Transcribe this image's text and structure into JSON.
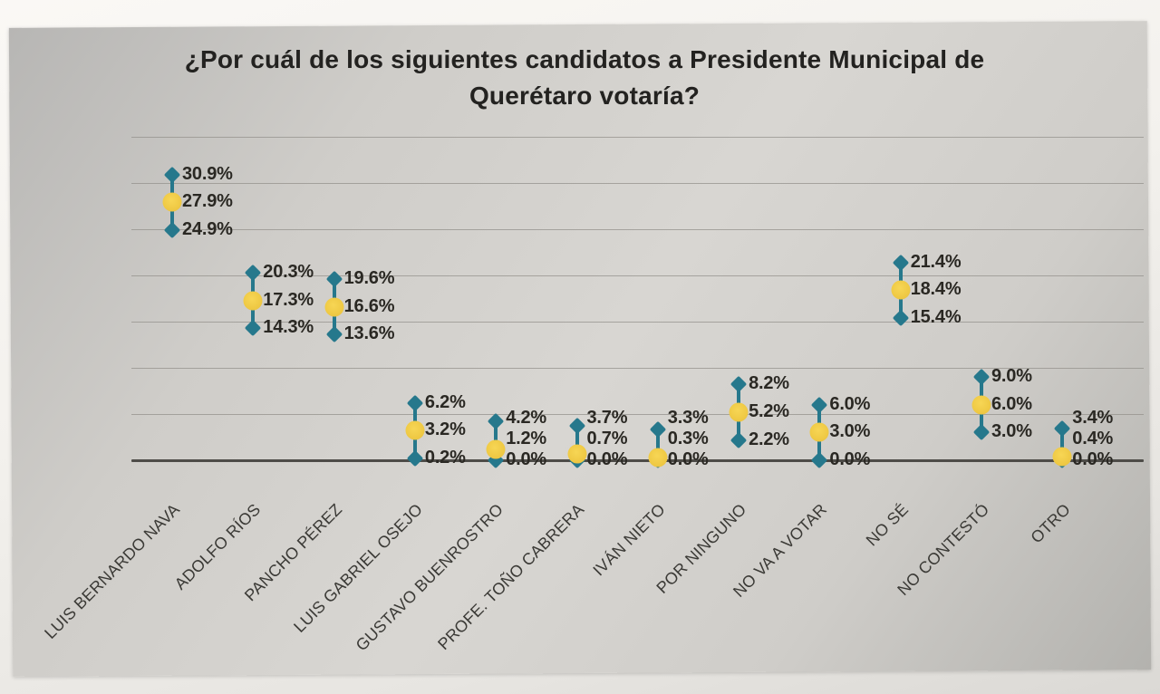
{
  "chart_data": {
    "type": "scatter",
    "subtype": "interval-estimate",
    "title": "¿Por cuál de los siguientes candidatos a Presidente Municipal de Querétaro votaría?",
    "categories": [
      "LUIS BERNARDO NAVA",
      "ADOLFO RÍOS",
      "PANCHO PÉREZ",
      "LUIS GABRIEL OSEJO",
      "GUSTAVO BUENROSTRO",
      "PROFE. TOÑO CABRERA",
      "IVÁN NIETO",
      "POR NINGUNO",
      "NO VA A VOTAR",
      "NO SÉ",
      "NO CONTESTÓ",
      "OTRO"
    ],
    "series": [
      {
        "name": "upper-bound",
        "marker": "diamond",
        "values": [
          30.9,
          20.3,
          19.6,
          6.2,
          4.2,
          3.7,
          3.3,
          8.2,
          6.0,
          21.4,
          9.0,
          3.4
        ]
      },
      {
        "name": "estimate",
        "marker": "circle",
        "values": [
          27.9,
          17.3,
          16.6,
          3.2,
          1.2,
          0.7,
          0.3,
          5.2,
          3.0,
          18.4,
          6.0,
          0.4
        ]
      },
      {
        "name": "lower-bound",
        "marker": "diamond",
        "values": [
          24.9,
          14.3,
          13.6,
          0.2,
          0.0,
          0.0,
          0.0,
          2.2,
          0.0,
          15.4,
          3.0,
          0.0
        ]
      }
    ],
    "value_suffix": "%",
    "value_decimals": 1,
    "xlabel": "",
    "ylabel": "",
    "ylim": [
      0,
      35
    ],
    "gridline_step": 5,
    "grid": true,
    "legend": "none",
    "x_tick_rotation": -45,
    "colors": {
      "interval": "#26788c",
      "estimate": "#efc944",
      "gridline": "#94928c",
      "axis": "#4e4c48",
      "value_text": "#2a2823",
      "category_text": "#3b3a36",
      "paper": "#cfcdc9"
    }
  }
}
